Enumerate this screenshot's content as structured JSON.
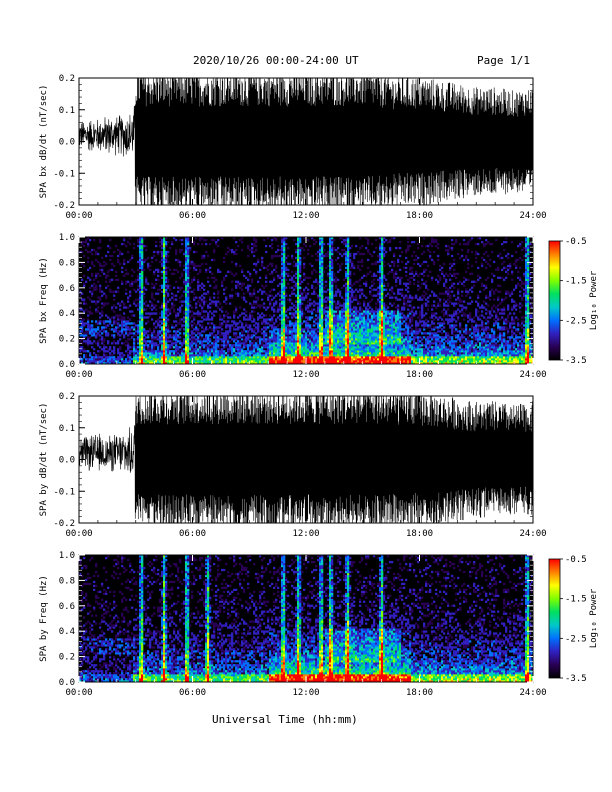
{
  "header": {
    "title": "2020/10/26  00:00-24:00 UT",
    "page": "Page 1/1"
  },
  "xlabel": "Universal Time (hh:mm)",
  "colorbar": {
    "label": "Log₁₀ Power",
    "ticks": [
      "-0.5",
      "-1.5",
      "-2.5",
      "-3.5"
    ],
    "range": [
      -3.5,
      -0.5
    ],
    "colormap": [
      "#000000",
      "#2a0055",
      "#3020c0",
      "#0070ff",
      "#00c8c8",
      "#00e060",
      "#80ff00",
      "#ffff00",
      "#ff8000",
      "#ff0000"
    ]
  },
  "chart_data": [
    {
      "type": "line",
      "panel": "bx-waveform",
      "ylabel": "SPA bx dB/dt (nT/sec)",
      "xlim": [
        0,
        24
      ],
      "ylim": [
        -0.2,
        0.2
      ],
      "x_ticks": [
        "00:00",
        "06:00",
        "12:00",
        "18:00",
        "24:00"
      ],
      "y_ticks": [
        "-0.2",
        "-0.1",
        "0.0",
        "0.1",
        "0.2"
      ],
      "envelope": {
        "x": [
          0,
          0.5,
          1,
          1.5,
          2,
          2.5,
          2.9,
          3.0,
          4,
          5,
          6,
          7,
          8,
          9,
          10,
          10.3,
          12,
          14,
          14.5,
          15,
          16,
          17,
          18,
          19,
          20,
          21,
          22,
          23,
          24
        ],
        "amplitude": [
          0.05,
          0.06,
          0.06,
          0.07,
          0.07,
          0.08,
          0.09,
          0.2,
          0.2,
          0.2,
          0.2,
          0.2,
          0.2,
          0.2,
          0.2,
          0.2,
          0.2,
          0.2,
          0.2,
          0.2,
          0.19,
          0.18,
          0.18,
          0.17,
          0.16,
          0.15,
          0.15,
          0.14,
          0.15
        ]
      }
    },
    {
      "type": "heatmap",
      "panel": "bx-spectrogram",
      "ylabel": "SPA bx Freq (Hz)",
      "xlim": [
        0,
        24
      ],
      "ylim": [
        0,
        1
      ],
      "x_ticks": [
        "00:00",
        "06:00",
        "12:00",
        "18:00",
        "24:00"
      ],
      "y_ticks": [
        "0.0",
        "0.2",
        "0.4",
        "0.6",
        "0.8",
        "1.0"
      ],
      "zlim": [
        -3.5,
        -0.5
      ],
      "bright_bursts_hours": [
        3.3,
        4.5,
        5.7,
        10.8,
        11.6,
        12.8,
        13.3,
        14.2,
        16.0,
        23.7
      ]
    },
    {
      "type": "line",
      "panel": "by-waveform",
      "ylabel": "SPA by dB/dt (nT/sec)",
      "xlim": [
        0,
        24
      ],
      "ylim": [
        -0.2,
        0.2
      ],
      "x_ticks": [
        "00:00",
        "06:00",
        "12:00",
        "18:00",
        "24:00"
      ],
      "y_ticks": [
        "-0.2",
        "-0.1",
        "0.0",
        "0.1",
        "0.2"
      ],
      "envelope": {
        "x": [
          0,
          0.5,
          1,
          1.5,
          2,
          2.5,
          2.9,
          3.0,
          4,
          5,
          6,
          7,
          8,
          9,
          10,
          12,
          14,
          16,
          18,
          19,
          20,
          21,
          22,
          23,
          24
        ],
        "amplitude": [
          0.06,
          0.06,
          0.07,
          0.06,
          0.07,
          0.08,
          0.09,
          0.2,
          0.2,
          0.2,
          0.2,
          0.2,
          0.2,
          0.2,
          0.2,
          0.2,
          0.2,
          0.2,
          0.19,
          0.18,
          0.17,
          0.16,
          0.16,
          0.15,
          0.16
        ]
      }
    },
    {
      "type": "heatmap",
      "panel": "by-spectrogram",
      "ylabel": "SPA by Freq (Hz)",
      "xlim": [
        0,
        24
      ],
      "ylim": [
        0,
        1
      ],
      "x_ticks": [
        "00:00",
        "06:00",
        "12:00",
        "18:00",
        "24:00"
      ],
      "y_ticks": [
        "0.0",
        "0.2",
        "0.4",
        "0.6",
        "0.8",
        "1.0"
      ],
      "zlim": [
        -3.5,
        -0.5
      ],
      "bright_bursts_hours": [
        3.3,
        4.5,
        5.7,
        6.8,
        10.8,
        11.6,
        12.8,
        13.3,
        14.2,
        16.0,
        23.7
      ]
    }
  ]
}
